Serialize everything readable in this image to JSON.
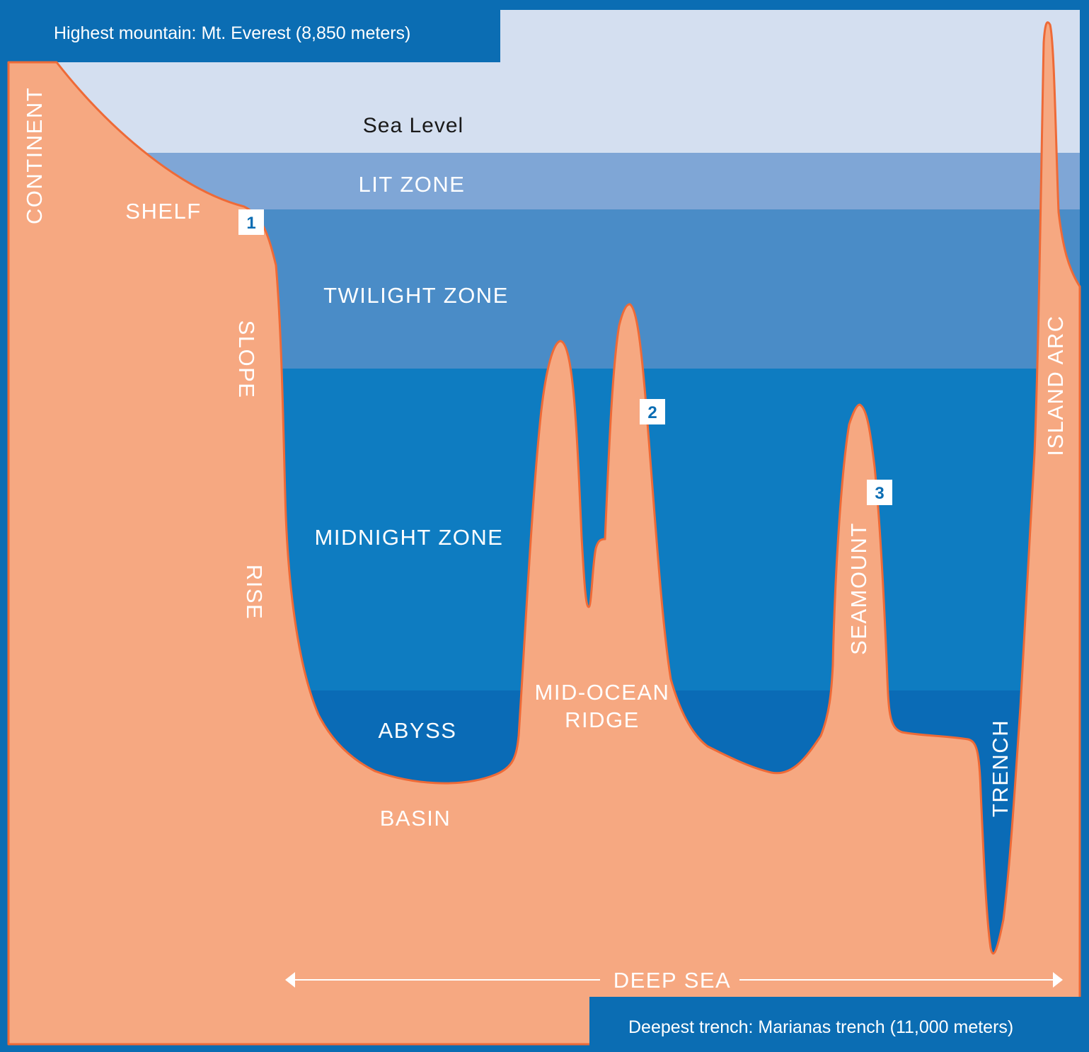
{
  "header": {
    "text": "Highest mountain: Mt. Everest (8,850 meters)"
  },
  "footer": {
    "text": "Deepest trench: Marianas trench (11,000 meters)"
  },
  "zones": {
    "sea_level": "Sea Level",
    "lit": "LIT ZONE",
    "twilight": "TWILIGHT ZONE",
    "midnight": "MIDNIGHT ZONE",
    "abyss": "ABYSS"
  },
  "features": {
    "continent": "CONTINENT",
    "shelf": "SHELF",
    "slope": "SLOPE",
    "rise": "RISE",
    "ridge_line1": "MID-OCEAN",
    "ridge_line2": "RIDGE",
    "basin": "BASIN",
    "seamount": "SEAMOUNT",
    "trench": "TRENCH",
    "island_arc": "ISLAND ARC"
  },
  "deep_sea": "DEEP SEA",
  "markers": [
    "1",
    "2",
    "3"
  ],
  "colors": {
    "frame": "#0b6db3",
    "sky": "#d4dff0",
    "lit_zone": "#7fa6d6",
    "twilight_zone": "#4a8cc7",
    "midnight_zone": "#0e7cc1",
    "abyss_zone": "#0a6bb6",
    "land": "#f6a881",
    "outline": "#ee6a37"
  }
}
